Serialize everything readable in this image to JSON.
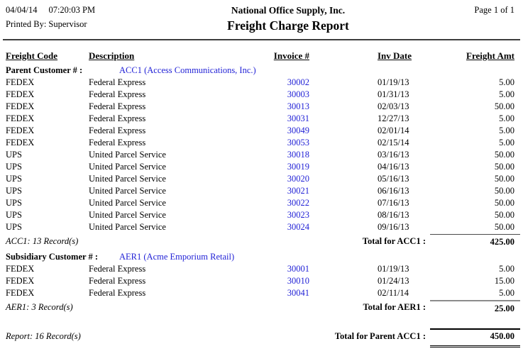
{
  "page": {
    "date": "04/04/14",
    "time": "07:20:03 PM",
    "printed_by": "Printed By: Supervisor",
    "company": "National Office Supply, Inc.",
    "title": "Freight Charge Report",
    "page_label": "Page 1 of 1"
  },
  "columns": [
    "Freight Code",
    "Description",
    "Invoice #",
    "Inv Date",
    "Freight Amt"
  ],
  "groups": [
    {
      "label": "Parent Customer # :",
      "customer": "ACC1 (Access Communications, Inc.)",
      "rows": [
        {
          "code": "FEDEX",
          "desc": "Federal Express",
          "invoice": "30002",
          "date": "01/19/13",
          "amt": "5.00"
        },
        {
          "code": "FEDEX",
          "desc": "Federal Express",
          "invoice": "30003",
          "date": "01/31/13",
          "amt": "5.00"
        },
        {
          "code": "FEDEX",
          "desc": "Federal Express",
          "invoice": "30013",
          "date": "02/03/13",
          "amt": "50.00"
        },
        {
          "code": "FEDEX",
          "desc": "Federal Express",
          "invoice": "30031",
          "date": "12/27/13",
          "amt": "5.00"
        },
        {
          "code": "FEDEX",
          "desc": "Federal Express",
          "invoice": "30049",
          "date": "02/01/14",
          "amt": "5.00"
        },
        {
          "code": "FEDEX",
          "desc": "Federal Express",
          "invoice": "30053",
          "date": "02/15/14",
          "amt": "5.00"
        },
        {
          "code": "UPS",
          "desc": "United Parcel Service",
          "invoice": "30018",
          "date": "03/16/13",
          "amt": "50.00"
        },
        {
          "code": "UPS",
          "desc": "United Parcel Service",
          "invoice": "30019",
          "date": "04/16/13",
          "amt": "50.00"
        },
        {
          "code": "UPS",
          "desc": "United Parcel Service",
          "invoice": "30020",
          "date": "05/16/13",
          "amt": "50.00"
        },
        {
          "code": "UPS",
          "desc": "United Parcel Service",
          "invoice": "30021",
          "date": "06/16/13",
          "amt": "50.00"
        },
        {
          "code": "UPS",
          "desc": "United Parcel Service",
          "invoice": "30022",
          "date": "07/16/13",
          "amt": "50.00"
        },
        {
          "code": "UPS",
          "desc": "United Parcel Service",
          "invoice": "30023",
          "date": "08/16/13",
          "amt": "50.00"
        },
        {
          "code": "UPS",
          "desc": "United Parcel Service",
          "invoice": "30024",
          "date": "09/16/13",
          "amt": "50.00"
        }
      ],
      "record_count": "ACC1: 13 Record(s)",
      "total_label": "Total for ACC1 :",
      "total": "425.00"
    },
    {
      "label": "Subsidiary Customer # :",
      "customer": "AER1 (Acme Emporium Retail)",
      "rows": [
        {
          "code": "FEDEX",
          "desc": "Federal Express",
          "invoice": "30001",
          "date": "01/19/13",
          "amt": "5.00"
        },
        {
          "code": "FEDEX",
          "desc": "Federal Express",
          "invoice": "30010",
          "date": "01/24/13",
          "amt": "15.00"
        },
        {
          "code": "FEDEX",
          "desc": "Federal Express",
          "invoice": "30041",
          "date": "02/11/14",
          "amt": "5.00"
        }
      ],
      "record_count": "AER1: 3 Record(s)",
      "total_label": "Total for AER1 :",
      "total": "25.00"
    }
  ],
  "report_footer": {
    "record_count": "Report: 16 Record(s)",
    "grand_total_label": "Total for Parent ACC1 :",
    "grand_total": "450.00"
  },
  "colors": {
    "link_blue": "#2222d6"
  }
}
